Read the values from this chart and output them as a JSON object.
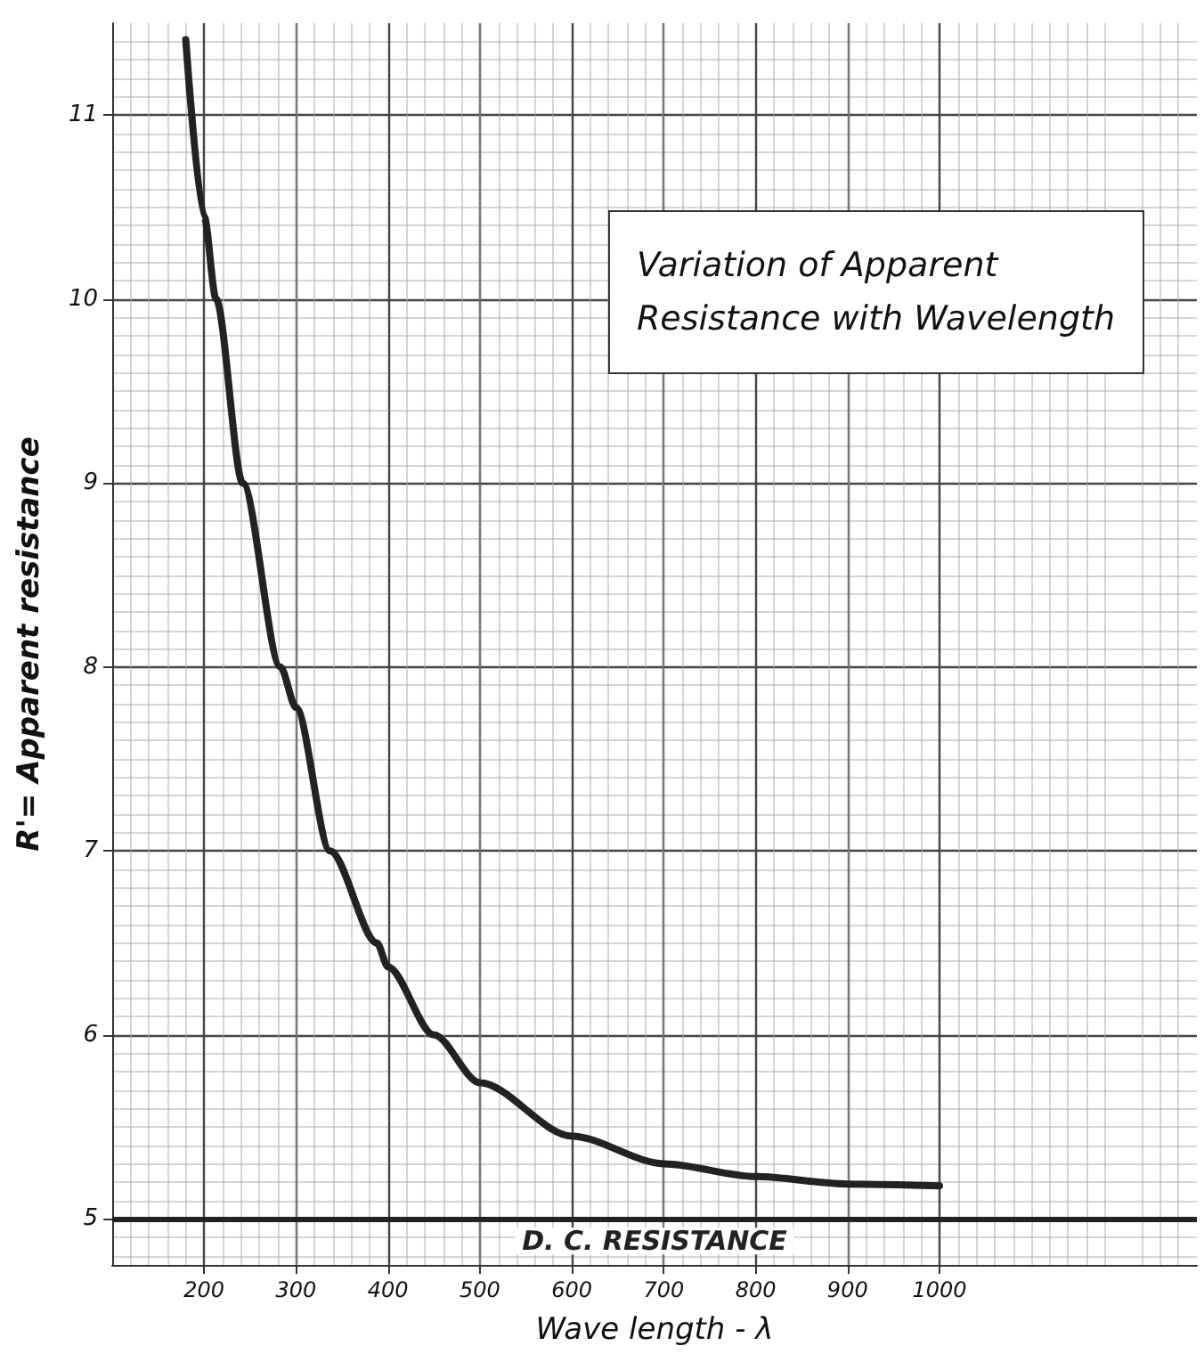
{
  "chart_data": {
    "type": "line",
    "title": "Variation of Apparent\nResistance with Wavelength",
    "xlabel": "Wave length - λ",
    "ylabel": "R'= Apparent resistance",
    "series": [
      {
        "color": "#222222",
        "x": [
          180,
          200,
          213,
          242,
          283,
          300,
          337,
          388,
          400,
          450,
          500,
          600,
          700,
          800,
          900,
          1000
        ],
        "values": [
          11.41,
          10.45,
          10,
          9,
          8,
          7.78,
          7,
          6.5,
          6.37,
          6,
          5.74,
          5.45,
          5.3,
          5.23,
          5.19,
          5.18
        ]
      }
    ],
    "ref_lines": [
      {
        "axis": "y",
        "value": 5,
        "label": "D. C. RESISTANCE",
        "color": "#222222"
      }
    ],
    "xlim": [
      100,
      1280
    ],
    "xticks": [
      200,
      300,
      400,
      500,
      600,
      700,
      800,
      900,
      1000
    ],
    "ylim": [
      4.75,
      11.5
    ],
    "yticks": [
      5,
      6,
      7,
      8,
      9,
      10,
      11
    ],
    "grid": true,
    "marker": "none",
    "line_style": "solid"
  }
}
